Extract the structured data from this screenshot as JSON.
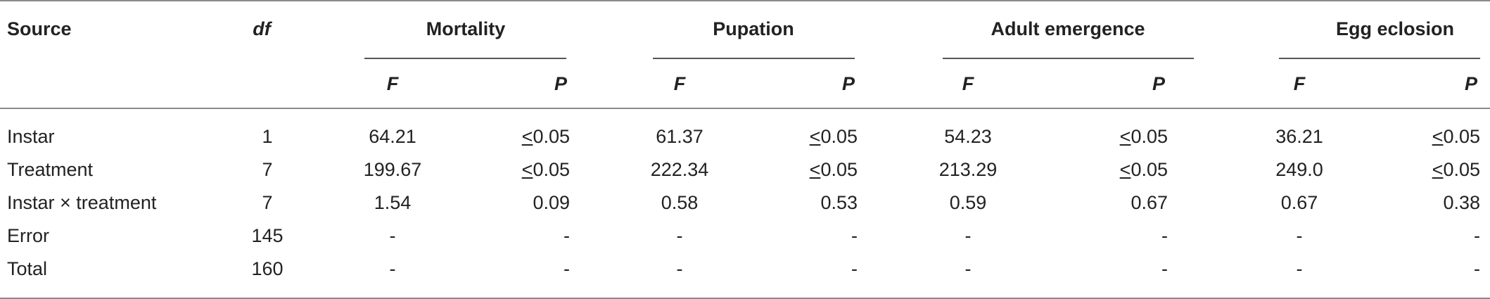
{
  "table": {
    "header": {
      "source": "Source",
      "df": "df",
      "groups": [
        "Mortality",
        "Pupation",
        "Adult emergence",
        "Egg eclosion"
      ],
      "f": "F",
      "p": "P"
    },
    "rows": [
      {
        "source": "Instar",
        "df": "1",
        "values": [
          {
            "f": "64.21",
            "p": "0.05",
            "p_prefix": "≤"
          },
          {
            "f": "61.37",
            "p": "0.05",
            "p_prefix": "≤"
          },
          {
            "f": "54.23",
            "p": "0.05",
            "p_prefix": "≤"
          },
          {
            "f": "36.21",
            "p": "0.05",
            "p_prefix": "≤"
          }
        ]
      },
      {
        "source": "Treatment",
        "df": "7",
        "values": [
          {
            "f": "199.67",
            "p": "0.05",
            "p_prefix": "≤"
          },
          {
            "f": "222.34",
            "p": "0.05",
            "p_prefix": "≤"
          },
          {
            "f": "213.29",
            "p": "0.05",
            "p_prefix": "≤"
          },
          {
            "f": "249.0",
            "p": "0.05",
            "p_prefix": "≤"
          }
        ]
      },
      {
        "source": "Instar × treatment",
        "df": "7",
        "values": [
          {
            "f": "1.54",
            "p": "0.09",
            "p_prefix": ""
          },
          {
            "f": "0.58",
            "p": "0.53",
            "p_prefix": ""
          },
          {
            "f": "0.59",
            "p": "0.67",
            "p_prefix": ""
          },
          {
            "f": "0.67",
            "p": "0.38",
            "p_prefix": ""
          }
        ]
      },
      {
        "source": "Error",
        "df": "145",
        "values": [
          {
            "f": "-",
            "p": "-",
            "p_prefix": ""
          },
          {
            "f": "-",
            "p": "-",
            "p_prefix": ""
          },
          {
            "f": "-",
            "p": "-",
            "p_prefix": ""
          },
          {
            "f": "-",
            "p": "-",
            "p_prefix": ""
          }
        ]
      },
      {
        "source": "Total",
        "df": "160",
        "values": [
          {
            "f": "-",
            "p": "-",
            "p_prefix": ""
          },
          {
            "f": "-",
            "p": "-",
            "p_prefix": ""
          },
          {
            "f": "-",
            "p": "-",
            "p_prefix": ""
          },
          {
            "f": "-",
            "p": "-",
            "p_prefix": ""
          }
        ]
      }
    ]
  }
}
